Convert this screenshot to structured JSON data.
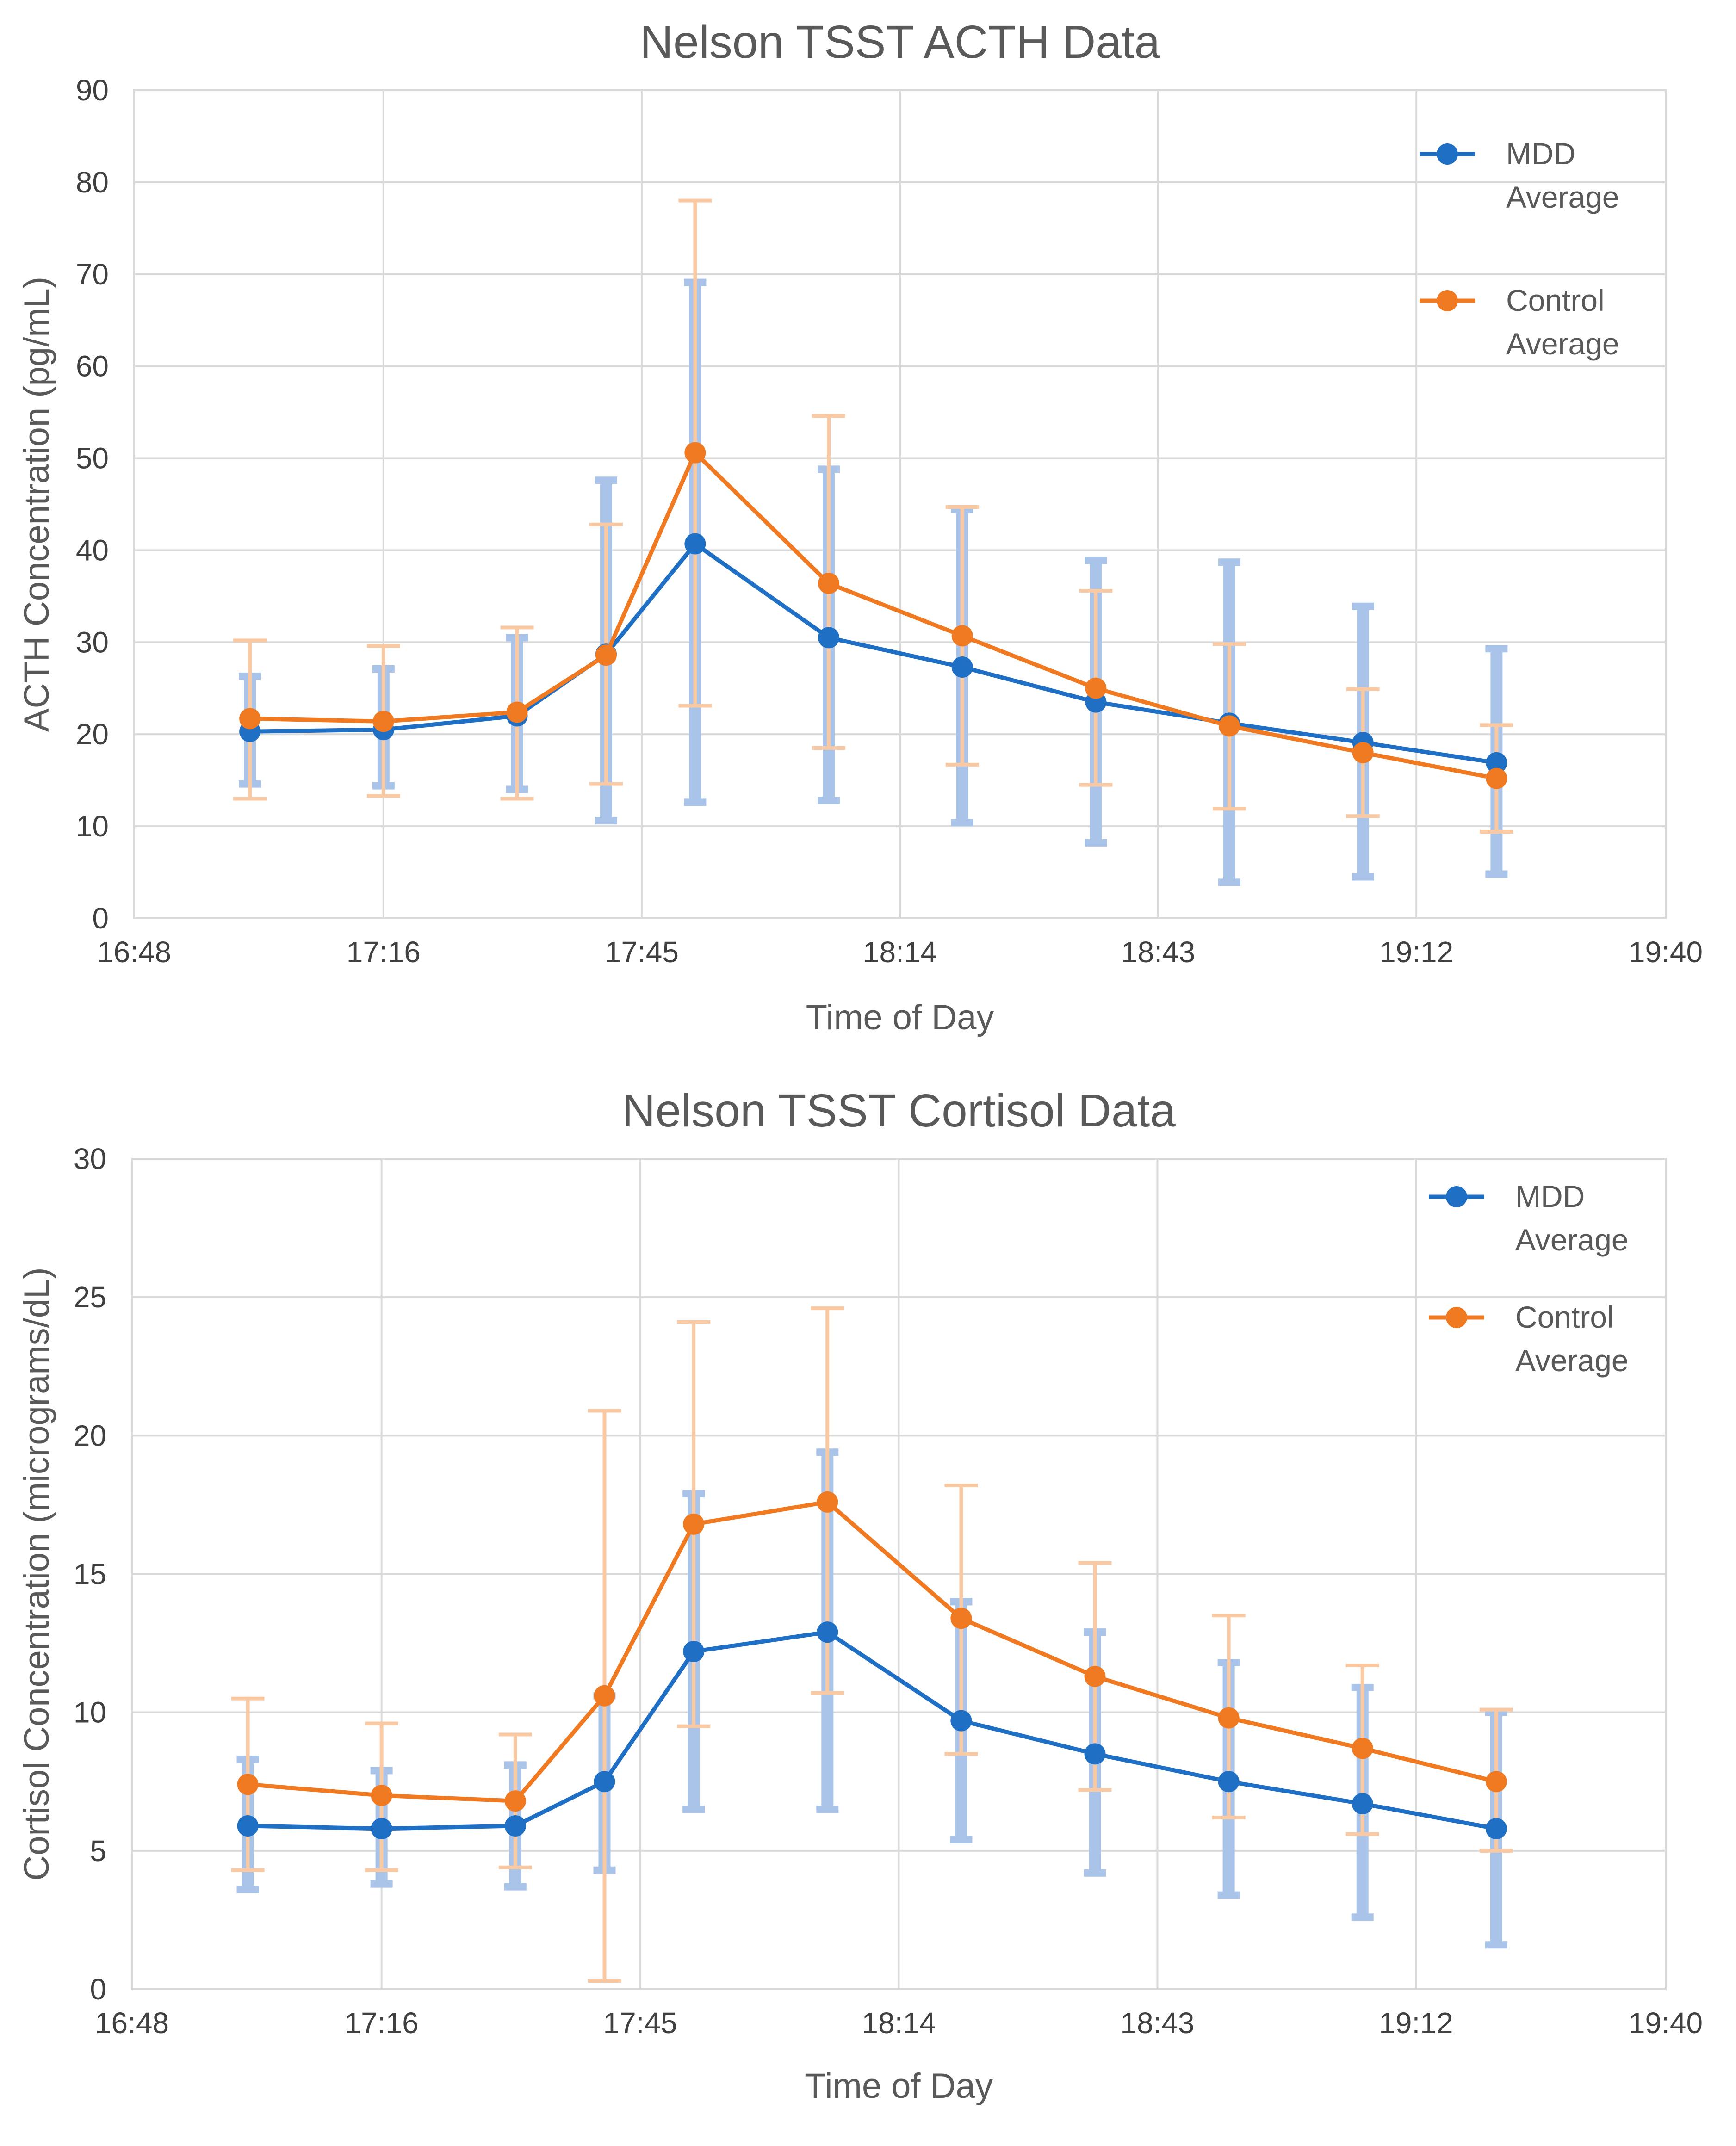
{
  "chart_data": [
    {
      "type": "line",
      "title": "Nelson TSST ACTH Data",
      "xlabel": "Time of Day",
      "ylabel": "ACTH Concentration (pg/mL)",
      "ylim": [
        0,
        90
      ],
      "yticks": [
        0,
        10,
        20,
        30,
        40,
        50,
        60,
        70,
        80,
        90
      ],
      "xlim": [
        1008,
        1180
      ],
      "xticks": [
        {
          "min": 1008,
          "label": "16:48"
        },
        {
          "min": 1036,
          "label": "17:16"
        },
        {
          "min": 1065,
          "label": "17:45"
        },
        {
          "min": 1094,
          "label": "18:14"
        },
        {
          "min": 1123,
          "label": "18:43"
        },
        {
          "min": 1152,
          "label": "19:12"
        },
        {
          "min": 1180,
          "label": "19:40"
        }
      ],
      "grid": true,
      "legend": "top-right",
      "series": [
        {
          "name": "MDD Average",
          "color": "#1F6FC5",
          "error_color": "#A9C4E8",
          "x": [
            1021,
            1036,
            1051,
            1061,
            1071,
            1086,
            1101,
            1116,
            1131,
            1146,
            1161
          ],
          "values": [
            20.3,
            20.5,
            22.0,
            28.7,
            40.7,
            30.5,
            27.3,
            23.5,
            21.2,
            19.1,
            16.9
          ],
          "err_low": [
            14.6,
            14.4,
            14.0,
            10.6,
            12.6,
            12.8,
            10.4,
            8.2,
            3.9,
            4.5,
            4.8
          ],
          "err_high": [
            26.3,
            27.1,
            30.5,
            47.6,
            69.1,
            48.8,
            44.4,
            38.9,
            38.7,
            33.9,
            29.3
          ]
        },
        {
          "name": "Control Average",
          "color": "#F07A22",
          "error_color": "#F9C9A4",
          "x": [
            1021,
            1036,
            1051,
            1061,
            1071,
            1086,
            1101,
            1116,
            1131,
            1146,
            1161
          ],
          "values": [
            21.7,
            21.4,
            22.4,
            28.6,
            50.6,
            36.4,
            30.7,
            25.0,
            20.9,
            18.0,
            15.2
          ],
          "err_low": [
            13.0,
            13.3,
            13.0,
            14.6,
            23.1,
            18.5,
            16.7,
            14.5,
            11.9,
            11.1,
            9.4
          ],
          "err_high": [
            30.2,
            29.6,
            31.6,
            42.8,
            78.0,
            54.6,
            44.7,
            35.6,
            29.8,
            24.9,
            21.0
          ]
        }
      ]
    },
    {
      "type": "line",
      "title": "Nelson TSST Cortisol Data",
      "xlabel": "Time of Day",
      "ylabel": "Cortisol Concentration (micrograms/dL)",
      "ylim": [
        0,
        30
      ],
      "yticks": [
        0,
        5,
        10,
        15,
        20,
        25,
        30
      ],
      "xlim": [
        1008,
        1180
      ],
      "xticks": [
        {
          "min": 1008,
          "label": "16:48"
        },
        {
          "min": 1036,
          "label": "17:16"
        },
        {
          "min": 1065,
          "label": "17:45"
        },
        {
          "min": 1094,
          "label": "18:14"
        },
        {
          "min": 1123,
          "label": "18:43"
        },
        {
          "min": 1152,
          "label": "19:12"
        },
        {
          "min": 1180,
          "label": "19:40"
        }
      ],
      "grid": true,
      "legend": "top-right",
      "series": [
        {
          "name": "MDD Average",
          "color": "#1F6FC5",
          "error_color": "#A9C4E8",
          "x": [
            1021,
            1036,
            1051,
            1061,
            1071,
            1086,
            1101,
            1116,
            1131,
            1146,
            1161
          ],
          "values": [
            5.9,
            5.8,
            5.9,
            7.5,
            12.2,
            12.9,
            9.7,
            8.5,
            7.5,
            6.7,
            5.8
          ],
          "err_low": [
            3.6,
            3.8,
            3.7,
            4.3,
            6.5,
            6.5,
            5.4,
            4.2,
            3.4,
            2.6,
            1.6
          ],
          "err_high": [
            8.3,
            7.9,
            8.1,
            10.6,
            17.9,
            19.4,
            14.0,
            12.9,
            11.8,
            10.9,
            10.0
          ]
        },
        {
          "name": "Control Average",
          "color": "#F07A22",
          "error_color": "#F9C9A4",
          "x": [
            1021,
            1036,
            1051,
            1061,
            1071,
            1086,
            1101,
            1116,
            1131,
            1146,
            1161
          ],
          "values": [
            7.4,
            7.0,
            6.8,
            10.6,
            16.8,
            17.6,
            13.4,
            11.3,
            9.8,
            8.7,
            7.5
          ],
          "err_low": [
            4.3,
            4.3,
            4.4,
            0.3,
            9.5,
            10.7,
            8.5,
            7.2,
            6.2,
            5.6,
            5.0
          ],
          "err_high": [
            10.5,
            9.6,
            9.2,
            20.9,
            24.1,
            24.6,
            18.2,
            15.4,
            13.5,
            11.7,
            10.1
          ]
        }
      ]
    }
  ]
}
